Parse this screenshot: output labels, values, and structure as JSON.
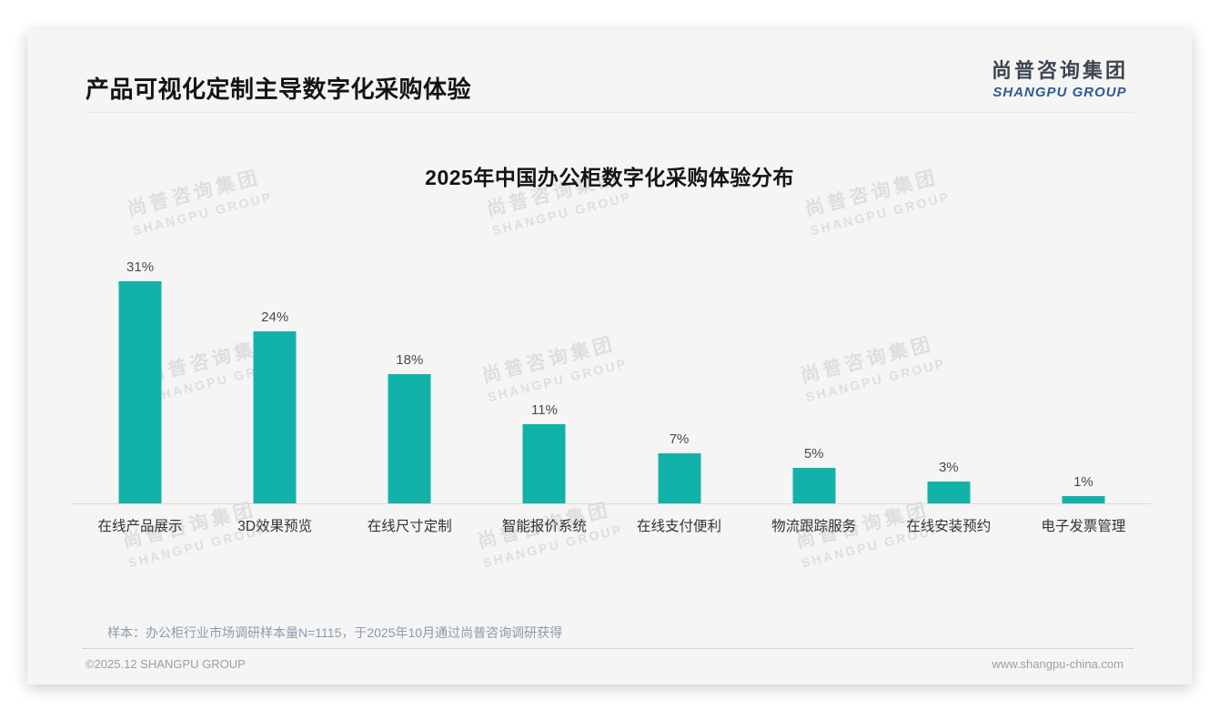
{
  "page": {
    "title": "产品可视化定制主导数字化采购体验",
    "logo": {
      "cn": "尚普咨询集团",
      "en": "SHANGPU GROUP"
    },
    "watermark": {
      "cn": "尚普咨询集团",
      "en": "SHANGPU GROUP"
    },
    "footnote": "样本：办公柜行业市场调研样本量N=1115，于2025年10月通过尚普咨询调研获得",
    "footer": {
      "copyright": "©2025.12 SHANGPU GROUP",
      "website": "www.shangpu-china.com"
    }
  },
  "colors": {
    "bar": "#12b2a9",
    "logo_blue": "#2d5c94",
    "title_text": "#141414"
  },
  "chart_data": {
    "type": "bar",
    "title": "2025年中国办公柜数字化采购体验分布",
    "categories": [
      "在线产品展示",
      "3D效果预览",
      "在线尺寸定制",
      "智能报价系统",
      "在线支付便利",
      "物流跟踪服务",
      "在线安装预约",
      "电子发票管理"
    ],
    "values": [
      31,
      24,
      18,
      11,
      7,
      5,
      3,
      1
    ],
    "labels": [
      "31%",
      "24%",
      "18%",
      "11%",
      "7%",
      "5%",
      "3%",
      "1%"
    ],
    "xlabel": "",
    "ylabel": "",
    "ylim": [
      0,
      35
    ],
    "grid": false,
    "legend_position": "none"
  }
}
